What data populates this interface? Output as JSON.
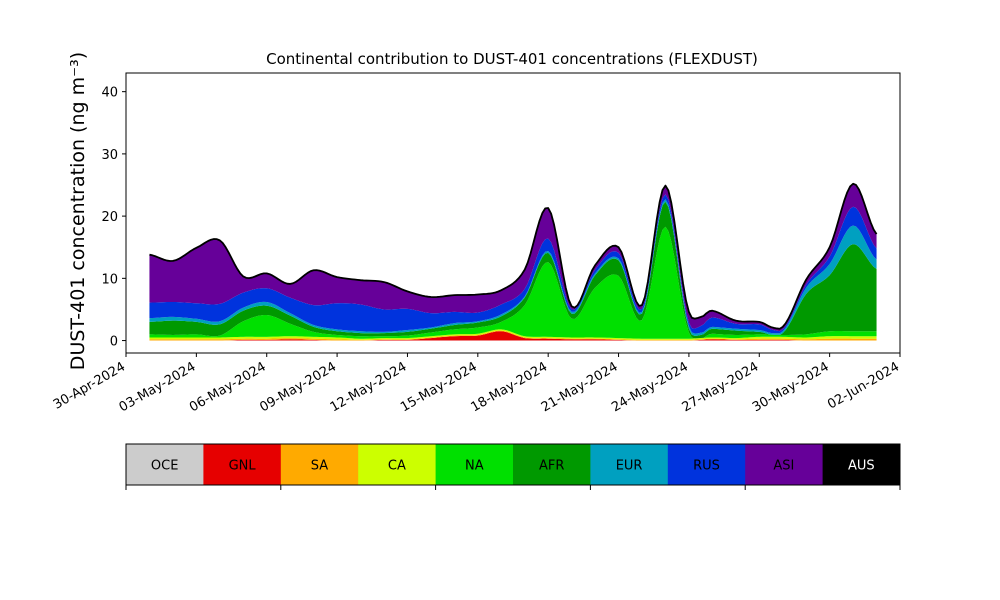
{
  "chart_data": {
    "type": "area",
    "stacked": true,
    "title": "Continental contribution to DUST-401 concentrations (FLEXDUST)",
    "ylabel": "DUST-401 concentration (ng m⁻³)",
    "xlabel": "",
    "ylim": [
      -2,
      43
    ],
    "xlim": [
      "2024-04-30",
      "2024-06-02"
    ],
    "x_ticks": [
      "30-Apr-2024",
      "03-May-2024",
      "06-May-2024",
      "09-May-2024",
      "12-May-2024",
      "15-May-2024",
      "18-May-2024",
      "21-May-2024",
      "24-May-2024",
      "27-May-2024",
      "30-May-2024",
      "02-Jun-2024"
    ],
    "y_ticks": [
      0,
      10,
      20,
      30,
      40
    ],
    "grid": false,
    "x": [
      "2024-05-01",
      "2024-05-02",
      "2024-05-03",
      "2024-05-04",
      "2024-05-05",
      "2024-05-06",
      "2024-05-07",
      "2024-05-08",
      "2024-05-09",
      "2024-05-10",
      "2024-05-11",
      "2024-05-12",
      "2024-05-13",
      "2024-05-14",
      "2024-05-15",
      "2024-05-16",
      "2024-05-17",
      "2024-05-18",
      "2024-05-19",
      "2024-05-20",
      "2024-05-21",
      "2024-05-22",
      "2024-05-23",
      "2024-05-24",
      "2024-05-25",
      "2024-05-26",
      "2024-05-27",
      "2024-05-28",
      "2024-05-29",
      "2024-05-30",
      "2024-05-31",
      "2024-06-01"
    ],
    "series": [
      {
        "name": "OCE",
        "color": "#cccccc",
        "values": [
          0,
          0,
          0,
          0,
          0,
          0,
          0,
          0,
          0,
          0,
          0,
          0,
          0,
          0,
          0,
          0,
          0,
          0,
          0,
          0,
          0,
          0,
          0,
          0,
          0,
          0,
          0,
          0,
          0,
          0,
          0,
          0
        ]
      },
      {
        "name": "GNL",
        "color": "#e60000",
        "values": [
          0,
          0,
          0,
          0,
          0.1,
          0.1,
          0.2,
          0.1,
          0,
          0,
          0.1,
          0.1,
          0.4,
          0.7,
          0.8,
          1.5,
          0.4,
          0.3,
          0.2,
          0.2,
          0.1,
          0,
          0,
          0,
          0.2,
          0.1,
          0.1,
          0.1,
          0,
          0,
          0,
          0
        ]
      },
      {
        "name": "SA",
        "color": "#ffaa00",
        "values": [
          0.2,
          0.2,
          0.2,
          0.2,
          0.2,
          0.2,
          0.2,
          0.2,
          0.2,
          0.1,
          0.1,
          0.1,
          0.1,
          0.1,
          0.1,
          0.1,
          0.1,
          0.1,
          0.1,
          0.1,
          0.1,
          0.1,
          0.1,
          0.1,
          0.1,
          0.1,
          0.2,
          0.2,
          0.2,
          0.3,
          0.3,
          0.3
        ]
      },
      {
        "name": "CA",
        "color": "#ccff00",
        "values": [
          0.3,
          0.3,
          0.3,
          0.3,
          0.3,
          0.3,
          0.3,
          0.3,
          0.3,
          0.2,
          0.2,
          0.2,
          0.2,
          0.2,
          0.2,
          0.2,
          0.2,
          0.2,
          0.2,
          0.2,
          0.2,
          0.2,
          0.2,
          0.2,
          0.2,
          0.2,
          0.3,
          0.3,
          0.3,
          0.4,
          0.4,
          0.4
        ]
      },
      {
        "name": "NA",
        "color": "#00e000",
        "values": [
          0.5,
          0.4,
          0.5,
          0.3,
          2.5,
          3.5,
          2.0,
          0.8,
          0.4,
          0.4,
          0.3,
          0.4,
          0.6,
          0.8,
          1.0,
          1.2,
          5.0,
          12.0,
          3.0,
          8.0,
          10.0,
          3.0,
          18.0,
          1.0,
          0.6,
          0.5,
          0.4,
          0.3,
          0.5,
          0.8,
          0.8,
          0.8
        ]
      },
      {
        "name": "AFR",
        "color": "#009900",
        "values": [
          2.0,
          2.3,
          2.0,
          1.8,
          1.7,
          1.5,
          1.3,
          0.8,
          0.6,
          0.5,
          0.5,
          0.6,
          0.6,
          0.7,
          0.8,
          0.9,
          1.2,
          1.5,
          0.8,
          2.0,
          2.5,
          1.0,
          4.0,
          0.6,
          0.8,
          0.7,
          0.4,
          0.3,
          6.5,
          9.0,
          14.0,
          10.0
        ]
      },
      {
        "name": "EUR",
        "color": "#00a0c0",
        "values": [
          0.6,
          0.6,
          0.5,
          0.5,
          0.5,
          0.6,
          0.4,
          0.3,
          0.3,
          0.3,
          0.2,
          0.3,
          0.2,
          0.3,
          0.2,
          0.3,
          0.2,
          0.3,
          0.3,
          0.3,
          0.3,
          0.3,
          0.4,
          0.4,
          0.3,
          0.3,
          0.3,
          0.3,
          1.0,
          1.8,
          3.0,
          1.5
        ]
      },
      {
        "name": "RUS",
        "color": "#0033dd",
        "values": [
          2.5,
          2.4,
          2.5,
          2.8,
          2.4,
          2.2,
          2.5,
          3.2,
          4.2,
          4.3,
          3.6,
          3.4,
          2.3,
          1.8,
          1.4,
          1.6,
          1.2,
          2.0,
          0.4,
          0.6,
          0.9,
          0.5,
          0.8,
          0.6,
          1.5,
          0.8,
          0.9,
          0.3,
          0.5,
          1.2,
          3.0,
          1.8
        ]
      },
      {
        "name": "ASI",
        "color": "#660099",
        "values": [
          7.7,
          6.6,
          8.9,
          10.2,
          2.6,
          2.4,
          2.2,
          5.6,
          4.2,
          3.9,
          4.4,
          2.8,
          2.6,
          2.7,
          2.9,
          2.3,
          3.1,
          4.9,
          0.5,
          0.7,
          0.9,
          0.6,
          1.4,
          1.7,
          1.1,
          0.5,
          0.4,
          0.4,
          0.8,
          1.5,
          3.7,
          2.3
        ]
      },
      {
        "name": "AUS",
        "color": "#000000",
        "values": [
          0,
          0,
          0,
          0,
          0,
          0,
          0,
          0,
          0,
          0,
          0,
          0,
          0,
          0,
          0,
          0,
          0,
          0,
          0,
          0,
          0,
          0,
          0,
          0,
          0,
          0,
          0,
          0,
          0,
          0,
          0,
          0
        ]
      }
    ],
    "total_line": {
      "color": "#000000"
    },
    "legend": {
      "placement": "bottom",
      "labels": [
        "OCE",
        "GNL",
        "SA",
        "CA",
        "NA",
        "AFR",
        "EUR",
        "RUS",
        "ASI",
        "AUS"
      ],
      "label_colors": [
        "#000000",
        "#000000",
        "#000000",
        "#000000",
        "#000000",
        "#000000",
        "#000000",
        "#000000",
        "#000000",
        "#ffffff"
      ]
    }
  }
}
